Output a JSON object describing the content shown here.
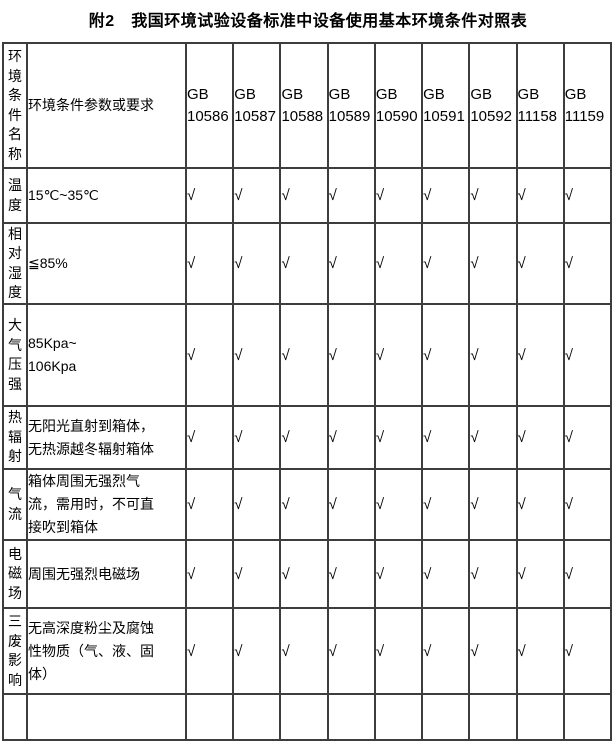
{
  "page": {
    "title": "附2　我国环境试验设备标准中设备使用基本环境条件对照表"
  },
  "table": {
    "corner_header": "环境条件名称",
    "param_header": "环境条件参数或要求",
    "check_symbol": "√",
    "standards": [
      {
        "org": "GB",
        "code": "10586"
      },
      {
        "org": "GB",
        "code": "10587"
      },
      {
        "org": "GB",
        "code": "10588"
      },
      {
        "org": "GB",
        "code": "10589"
      },
      {
        "org": "GB",
        "code": "10590"
      },
      {
        "org": "GB",
        "code": "10591"
      },
      {
        "org": "GB",
        "code": "10592"
      },
      {
        "org": "GB",
        "code": "11158"
      },
      {
        "org": "GB",
        "code": "11159"
      }
    ],
    "rows": [
      {
        "name": "温度",
        "param": "15℃~35℃",
        "checks": [
          "√",
          "√",
          "√",
          "√",
          "√",
          "√",
          "√",
          "√",
          "√"
        ]
      },
      {
        "name": "相对湿度",
        "param": "≦85%",
        "checks": [
          "√",
          "√",
          "√",
          "√",
          "√",
          "√",
          "√",
          "√",
          "√"
        ]
      },
      {
        "name": "大气压强",
        "param": "85Kpa~\n106Kpa",
        "checks": [
          "√",
          "√",
          "√",
          "√",
          "√",
          "√",
          "√",
          "√",
          "√"
        ]
      },
      {
        "name": "热辐射",
        "param": "无阳光直射到箱体，\n无热源越冬辐射箱体",
        "checks": [
          "√",
          "√",
          "√",
          "√",
          "√",
          "√",
          "√",
          "√",
          "√"
        ]
      },
      {
        "name": "气流",
        "param": "箱体周围无强烈气\n流，需用时，不可直\n接吹到箱体",
        "checks": [
          "√",
          "√",
          "√",
          "√",
          "√",
          "√",
          "√",
          "√",
          "√"
        ]
      },
      {
        "name": "电磁场",
        "param": "周围无强烈电磁场",
        "checks": [
          "√",
          "√",
          "√",
          "√",
          "√",
          "√",
          "√",
          "√",
          "√"
        ]
      },
      {
        "name": "三废影响",
        "param": "无高深度粉尘及腐蚀\n性物质（气、液、固\n体）",
        "checks": [
          "√",
          "√",
          "√",
          "√",
          "√",
          "√",
          "√",
          "√",
          "√"
        ]
      },
      {
        "name": "",
        "param": "",
        "checks": [
          "",
          "",
          "",
          "",
          "",
          "",
          "",
          "",
          ""
        ]
      }
    ]
  }
}
